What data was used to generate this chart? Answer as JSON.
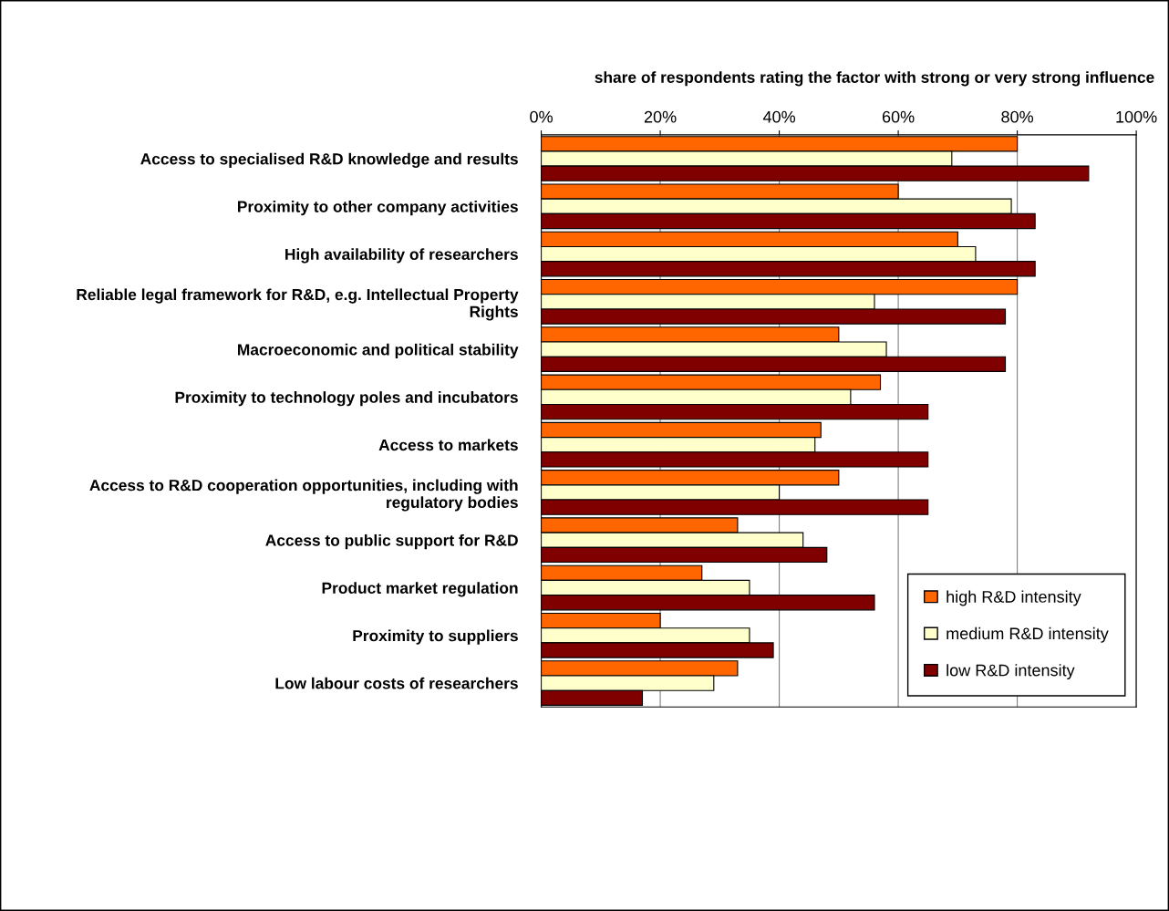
{
  "chart_data": {
    "type": "bar",
    "orientation": "horizontal",
    "xlabel": "share of respondents rating the factor with strong or very strong influence",
    "categories": [
      "Access to specialised R&D knowledge and results",
      "Proximity to other company activities",
      "High availability of researchers",
      "Reliable legal framework for R&D, e.g. Intellectual Property\nRights",
      "Macroeconomic and political stability",
      "Proximity to technology poles and incubators",
      "Access to markets",
      "Access to R&D cooperation opportunities, including with\nregulatory bodies",
      "Access to public support for R&D",
      "Product market regulation",
      "Proximity to suppliers",
      "Low labour costs of researchers"
    ],
    "series": [
      {
        "name": "high R&D intensity",
        "color": "#ff6600",
        "values": [
          80,
          60,
          70,
          80,
          50,
          57,
          47,
          50,
          33,
          27,
          20,
          33
        ]
      },
      {
        "name": "medium R&D intensity",
        "color": "#ffffcc",
        "values": [
          69,
          79,
          73,
          56,
          58,
          52,
          46,
          40,
          44,
          35,
          35,
          29
        ]
      },
      {
        "name": "low R&D intensity",
        "color": "#800000",
        "values": [
          92,
          83,
          83,
          78,
          78,
          65,
          65,
          65,
          48,
          56,
          39,
          17
        ]
      }
    ],
    "xlim": [
      0,
      100
    ],
    "xticks": [
      {
        "value": 0,
        "label": "0%"
      },
      {
        "value": 20,
        "label": "20%"
      },
      {
        "value": 40,
        "label": "40%"
      },
      {
        "value": 60,
        "label": "60%"
      },
      {
        "value": 80,
        "label": "80%"
      },
      {
        "value": 100,
        "label": "100%"
      }
    ],
    "grid": "x",
    "legend": "bottom right"
  }
}
